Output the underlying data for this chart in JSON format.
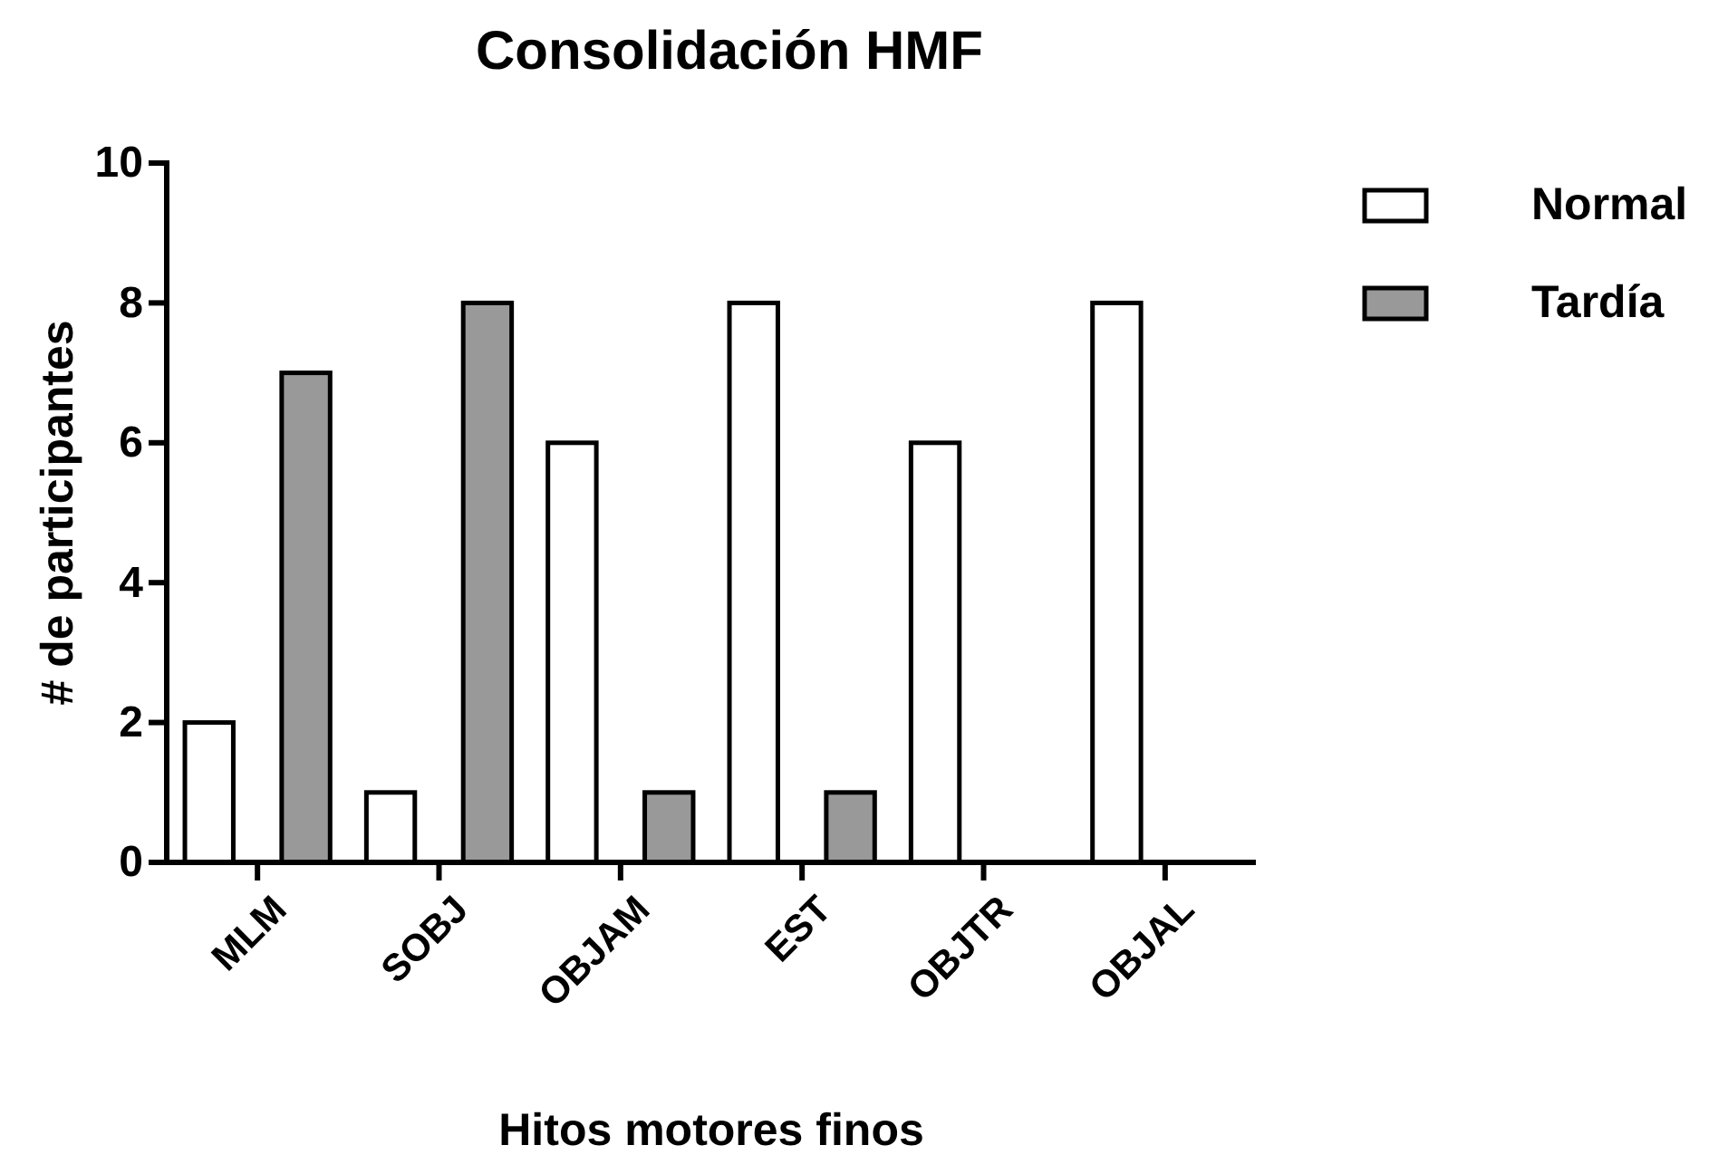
{
  "chart_data": {
    "type": "bar",
    "title": "Consolidación HMF",
    "xlabel": "Hitos motores finos",
    "ylabel": "# de participantes",
    "categories": [
      "MLM",
      "SOBJ",
      "OBJAM",
      "EST",
      "OBJTR",
      "OBJAL"
    ],
    "series": [
      {
        "name": "Normal",
        "color": "#ffffff",
        "values": [
          2,
          1,
          6,
          8,
          6,
          8
        ]
      },
      {
        "name": "Tardía",
        "color": "#999999",
        "values": [
          7,
          8,
          1,
          1,
          0,
          0
        ]
      }
    ],
    "ylim": [
      0,
      10
    ],
    "yticks": [
      0,
      2,
      4,
      6,
      8,
      10
    ],
    "grid": false,
    "legend": "top right"
  }
}
